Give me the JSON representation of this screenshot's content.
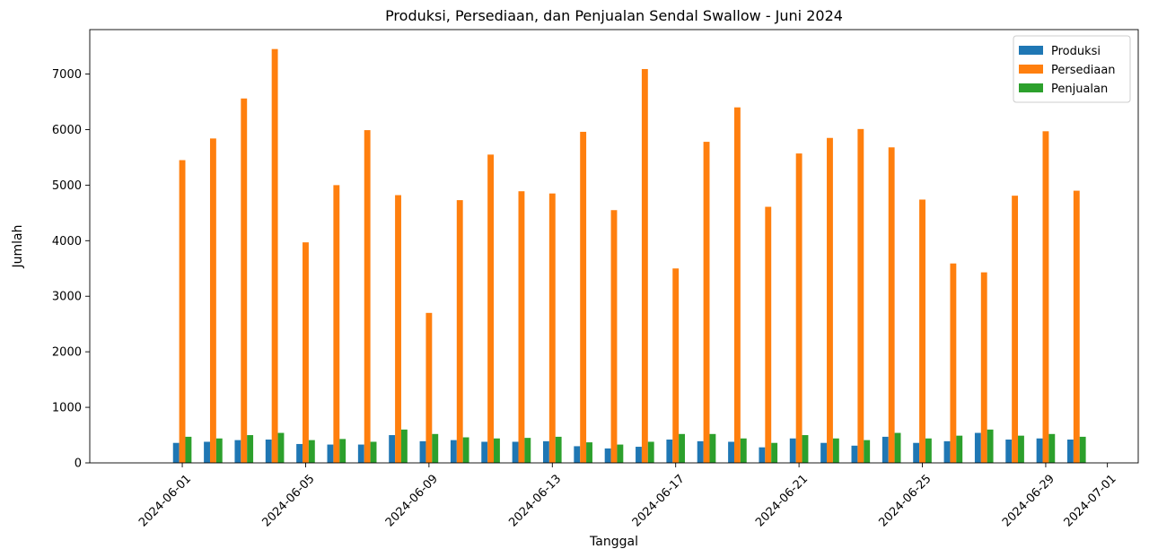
{
  "chart_data": {
    "type": "bar",
    "title": "Produksi, Persediaan, dan Penjualan Sendal Swallow - Juni 2024",
    "xlabel": "Tanggal",
    "ylabel": "Jumlah",
    "ylim": [
      0,
      7800
    ],
    "y_ticks": [
      0,
      1000,
      2000,
      3000,
      4000,
      5000,
      6000,
      7000
    ],
    "x_tick_labels": [
      "2024-06-01",
      "2024-06-05",
      "2024-06-09",
      "2024-06-13",
      "2024-06-17",
      "2024-06-21",
      "2024-06-25",
      "2024-06-29",
      "2024-07-01"
    ],
    "x_ticks": [
      "2024-06-01",
      "2024-06-05",
      "2024-06-09",
      "2024-06-13",
      "2024-06-17",
      "2024-06-21",
      "2024-06-25",
      "2024-06-29",
      "2024-07-01"
    ],
    "x_range": [
      "2024-05-29",
      "2024-07-02"
    ],
    "categories": [
      "2024-06-01",
      "2024-06-02",
      "2024-06-03",
      "2024-06-04",
      "2024-06-05",
      "2024-06-06",
      "2024-06-07",
      "2024-06-08",
      "2024-06-09",
      "2024-06-10",
      "2024-06-11",
      "2024-06-12",
      "2024-06-13",
      "2024-06-14",
      "2024-06-15",
      "2024-06-16",
      "2024-06-17",
      "2024-06-18",
      "2024-06-19",
      "2024-06-20",
      "2024-06-21",
      "2024-06-22",
      "2024-06-23",
      "2024-06-24",
      "2024-06-25",
      "2024-06-26",
      "2024-06-27",
      "2024-06-28",
      "2024-06-29",
      "2024-06-30"
    ],
    "series": [
      {
        "name": "Produksi",
        "color": "#1f77b4",
        "values": [
          360,
          380,
          410,
          420,
          340,
          330,
          330,
          500,
          390,
          410,
          380,
          380,
          390,
          300,
          260,
          290,
          420,
          390,
          380,
          280,
          440,
          360,
          310,
          470,
          360,
          390,
          540,
          420,
          440,
          420
        ]
      },
      {
        "name": "Persediaan",
        "color": "#ff7f0e",
        "values": [
          5450,
          5840,
          6560,
          7450,
          3970,
          5000,
          5990,
          4820,
          2700,
          4730,
          5550,
          4890,
          4850,
          5960,
          4550,
          7090,
          3500,
          5780,
          6400,
          4610,
          5570,
          5850,
          6010,
          5680,
          4740,
          3590,
          3430,
          4810,
          5970,
          4900
        ]
      },
      {
        "name": "Penjualan",
        "color": "#2ca02c",
        "values": [
          470,
          440,
          500,
          540,
          410,
          430,
          380,
          600,
          520,
          460,
          440,
          450,
          470,
          370,
          330,
          380,
          520,
          520,
          440,
          360,
          500,
          440,
          410,
          540,
          440,
          490,
          600,
          490,
          520,
          470
        ]
      }
    ],
    "legend": {
      "position": "top-right"
    },
    "grid": false
  }
}
